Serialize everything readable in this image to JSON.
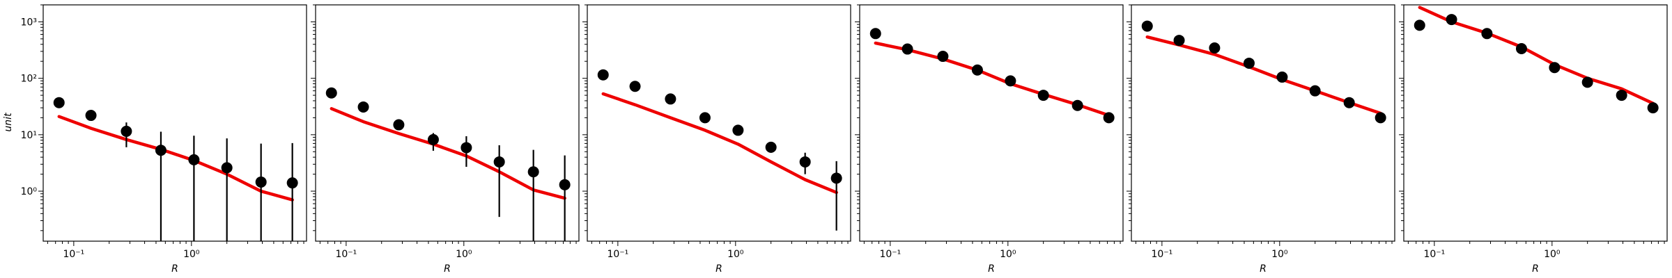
{
  "figure": {
    "ylabel": "unit",
    "xlabel": "R"
  },
  "chart_data": [
    {
      "type": "scatter",
      "xlabel": "R",
      "ylabel": "unit",
      "xscale": "log",
      "yscale": "log",
      "xlim": [
        0.055,
        9.5
      ],
      "ylim": [
        0.13,
        2000
      ],
      "xticks": [
        {
          "value": 0.1,
          "label": "10⁻¹"
        },
        {
          "value": 1,
          "label": "10⁰"
        }
      ],
      "yticks": [
        {
          "value": 1,
          "label": "10⁰"
        },
        {
          "value": 10,
          "label": "10¹"
        },
        {
          "value": 100,
          "label": "10²"
        },
        {
          "value": 1000,
          "label": "10³"
        }
      ],
      "series": [
        {
          "kind": "points",
          "color": "#000000",
          "x": [
            0.075,
            0.14,
            0.28,
            0.55,
            1.05,
            2.0,
            3.9,
            7.2
          ],
          "y": [
            37,
            22,
            11.5,
            5.3,
            3.6,
            2.6,
            1.45,
            1.4
          ],
          "yerr_low": [
            0,
            0,
            5.5,
            5.3,
            3.6,
            2.6,
            1.45,
            1.4
          ],
          "yerr_high": [
            0,
            0,
            5,
            6,
            6,
            6,
            5.5,
            5.7
          ]
        },
        {
          "kind": "line",
          "color": "#ee0000",
          "x": [
            0.075,
            0.14,
            0.28,
            0.55,
            1.05,
            2.0,
            3.9,
            7.2
          ],
          "y": [
            21,
            13,
            8.2,
            5.5,
            3.5,
            2.0,
            1.0,
            0.7
          ]
        }
      ]
    },
    {
      "type": "scatter",
      "xlabel": "R",
      "xscale": "log",
      "yscale": "log",
      "xlim": [
        0.055,
        9.5
      ],
      "ylim": [
        0.13,
        2000
      ],
      "xticks": [
        {
          "value": 0.1,
          "label": "10⁻¹"
        },
        {
          "value": 1,
          "label": "10⁰"
        }
      ],
      "series": [
        {
          "kind": "points",
          "color": "#000000",
          "x": [
            0.075,
            0.14,
            0.28,
            0.55,
            1.05,
            2.0,
            3.9,
            7.2
          ],
          "y": [
            55,
            31,
            15,
            8.2,
            5.9,
            3.3,
            2.2,
            1.3
          ],
          "yerr_low": [
            0,
            0,
            0,
            3,
            3.2,
            2.95,
            2.2,
            1.3
          ],
          "yerr_high": [
            0,
            0,
            0,
            2.5,
            3.5,
            3.2,
            3.2,
            3.0
          ]
        },
        {
          "kind": "line",
          "color": "#ee0000",
          "x": [
            0.075,
            0.14,
            0.28,
            0.55,
            1.05,
            2.0,
            3.9,
            7.2
          ],
          "y": [
            29,
            17,
            10.5,
            6.8,
            4.2,
            2.2,
            1.05,
            0.75
          ]
        }
      ]
    },
    {
      "type": "scatter",
      "xlabel": "R",
      "xscale": "log",
      "yscale": "log",
      "xlim": [
        0.055,
        9.5
      ],
      "ylim": [
        0.13,
        2000
      ],
      "xticks": [
        {
          "value": 0.1,
          "label": "10⁻¹"
        },
        {
          "value": 1,
          "label": "10⁰"
        }
      ],
      "series": [
        {
          "kind": "points",
          "color": "#000000",
          "x": [
            0.075,
            0.14,
            0.28,
            0.55,
            1.05,
            2.0,
            3.9,
            7.2
          ],
          "y": [
            115,
            72,
            43,
            20,
            12,
            6.0,
            3.3,
            1.7
          ],
          "yerr_low": [
            0,
            0,
            0,
            0,
            0,
            1.2,
            1.3,
            1.5
          ],
          "yerr_high": [
            0,
            0,
            0,
            0,
            0,
            1.0,
            1.5,
            1.7
          ]
        },
        {
          "kind": "line",
          "color": "#ee0000",
          "x": [
            0.075,
            0.14,
            0.28,
            0.55,
            1.05,
            2.0,
            3.9,
            7.2
          ],
          "y": [
            53,
            34,
            20,
            12,
            6.8,
            3.3,
            1.6,
            0.95
          ]
        }
      ]
    },
    {
      "type": "scatter",
      "xlabel": "R",
      "xscale": "log",
      "yscale": "log",
      "xlim": [
        0.055,
        9.5
      ],
      "ylim": [
        0.13,
        2000
      ],
      "xticks": [
        {
          "value": 0.1,
          "label": "10⁻¹"
        },
        {
          "value": 1,
          "label": "10⁰"
        }
      ],
      "series": [
        {
          "kind": "points",
          "color": "#000000",
          "x": [
            0.075,
            0.14,
            0.28,
            0.55,
            1.05,
            2.0,
            3.9,
            7.2
          ],
          "y": [
            620,
            330,
            245,
            140,
            90,
            50,
            33,
            20
          ],
          "yerr_low": [
            0,
            0,
            0,
            0,
            0,
            0,
            0,
            0
          ],
          "yerr_high": [
            0,
            0,
            0,
            0,
            0,
            0,
            0,
            0
          ]
        },
        {
          "kind": "line",
          "color": "#ee0000",
          "x": [
            0.075,
            0.14,
            0.28,
            0.55,
            1.05,
            2.0,
            3.9,
            7.2
          ],
          "y": [
            420,
            320,
            220,
            140,
            80,
            52,
            34,
            22
          ]
        }
      ]
    },
    {
      "type": "scatter",
      "xlabel": "R",
      "xscale": "log",
      "yscale": "log",
      "xlim": [
        0.055,
        9.5
      ],
      "ylim": [
        0.13,
        2000
      ],
      "xticks": [
        {
          "value": 0.1,
          "label": "10⁻¹"
        },
        {
          "value": 1,
          "label": "10⁰"
        }
      ],
      "series": [
        {
          "kind": "points",
          "color": "#000000",
          "x": [
            0.075,
            0.14,
            0.28,
            0.55,
            1.05,
            2.0,
            3.9,
            7.2
          ],
          "y": [
            840,
            470,
            345,
            185,
            105,
            60,
            37,
            20
          ],
          "yerr_low": [
            0,
            0,
            0,
            0,
            0,
            0,
            0,
            0
          ],
          "yerr_high": [
            0,
            0,
            0,
            0,
            0,
            0,
            0,
            0
          ]
        },
        {
          "kind": "line",
          "color": "#ee0000",
          "x": [
            0.075,
            0.14,
            0.28,
            0.55,
            1.05,
            2.0,
            3.9,
            7.2
          ],
          "y": [
            540,
            390,
            265,
            160,
            95,
            60,
            37,
            24
          ]
        }
      ]
    },
    {
      "type": "scatter",
      "xlabel": "R",
      "xscale": "log",
      "yscale": "log",
      "xlim": [
        0.055,
        9.5
      ],
      "ylim": [
        0.13,
        2000
      ],
      "xticks": [
        {
          "value": 0.1,
          "label": "10⁻¹"
        },
        {
          "value": 1,
          "label": "10⁰"
        }
      ],
      "series": [
        {
          "kind": "points",
          "color": "#000000",
          "x": [
            0.075,
            0.14,
            0.28,
            0.55,
            1.05,
            2.0,
            3.9,
            7.2
          ],
          "y": [
            870,
            1100,
            620,
            335,
            155,
            85,
            50,
            30
          ],
          "yerr_low": [
            0,
            0,
            0,
            0,
            0,
            0,
            0,
            0
          ],
          "yerr_high": [
            0,
            0,
            0,
            0,
            0,
            0,
            0,
            0
          ]
        },
        {
          "kind": "line",
          "color": "#ee0000",
          "x": [
            0.075,
            0.14,
            0.28,
            0.55,
            1.05,
            2.0,
            3.9,
            7.2
          ],
          "y": [
            1800,
            1000,
            630,
            360,
            175,
            100,
            65,
            36
          ]
        }
      ]
    }
  ]
}
